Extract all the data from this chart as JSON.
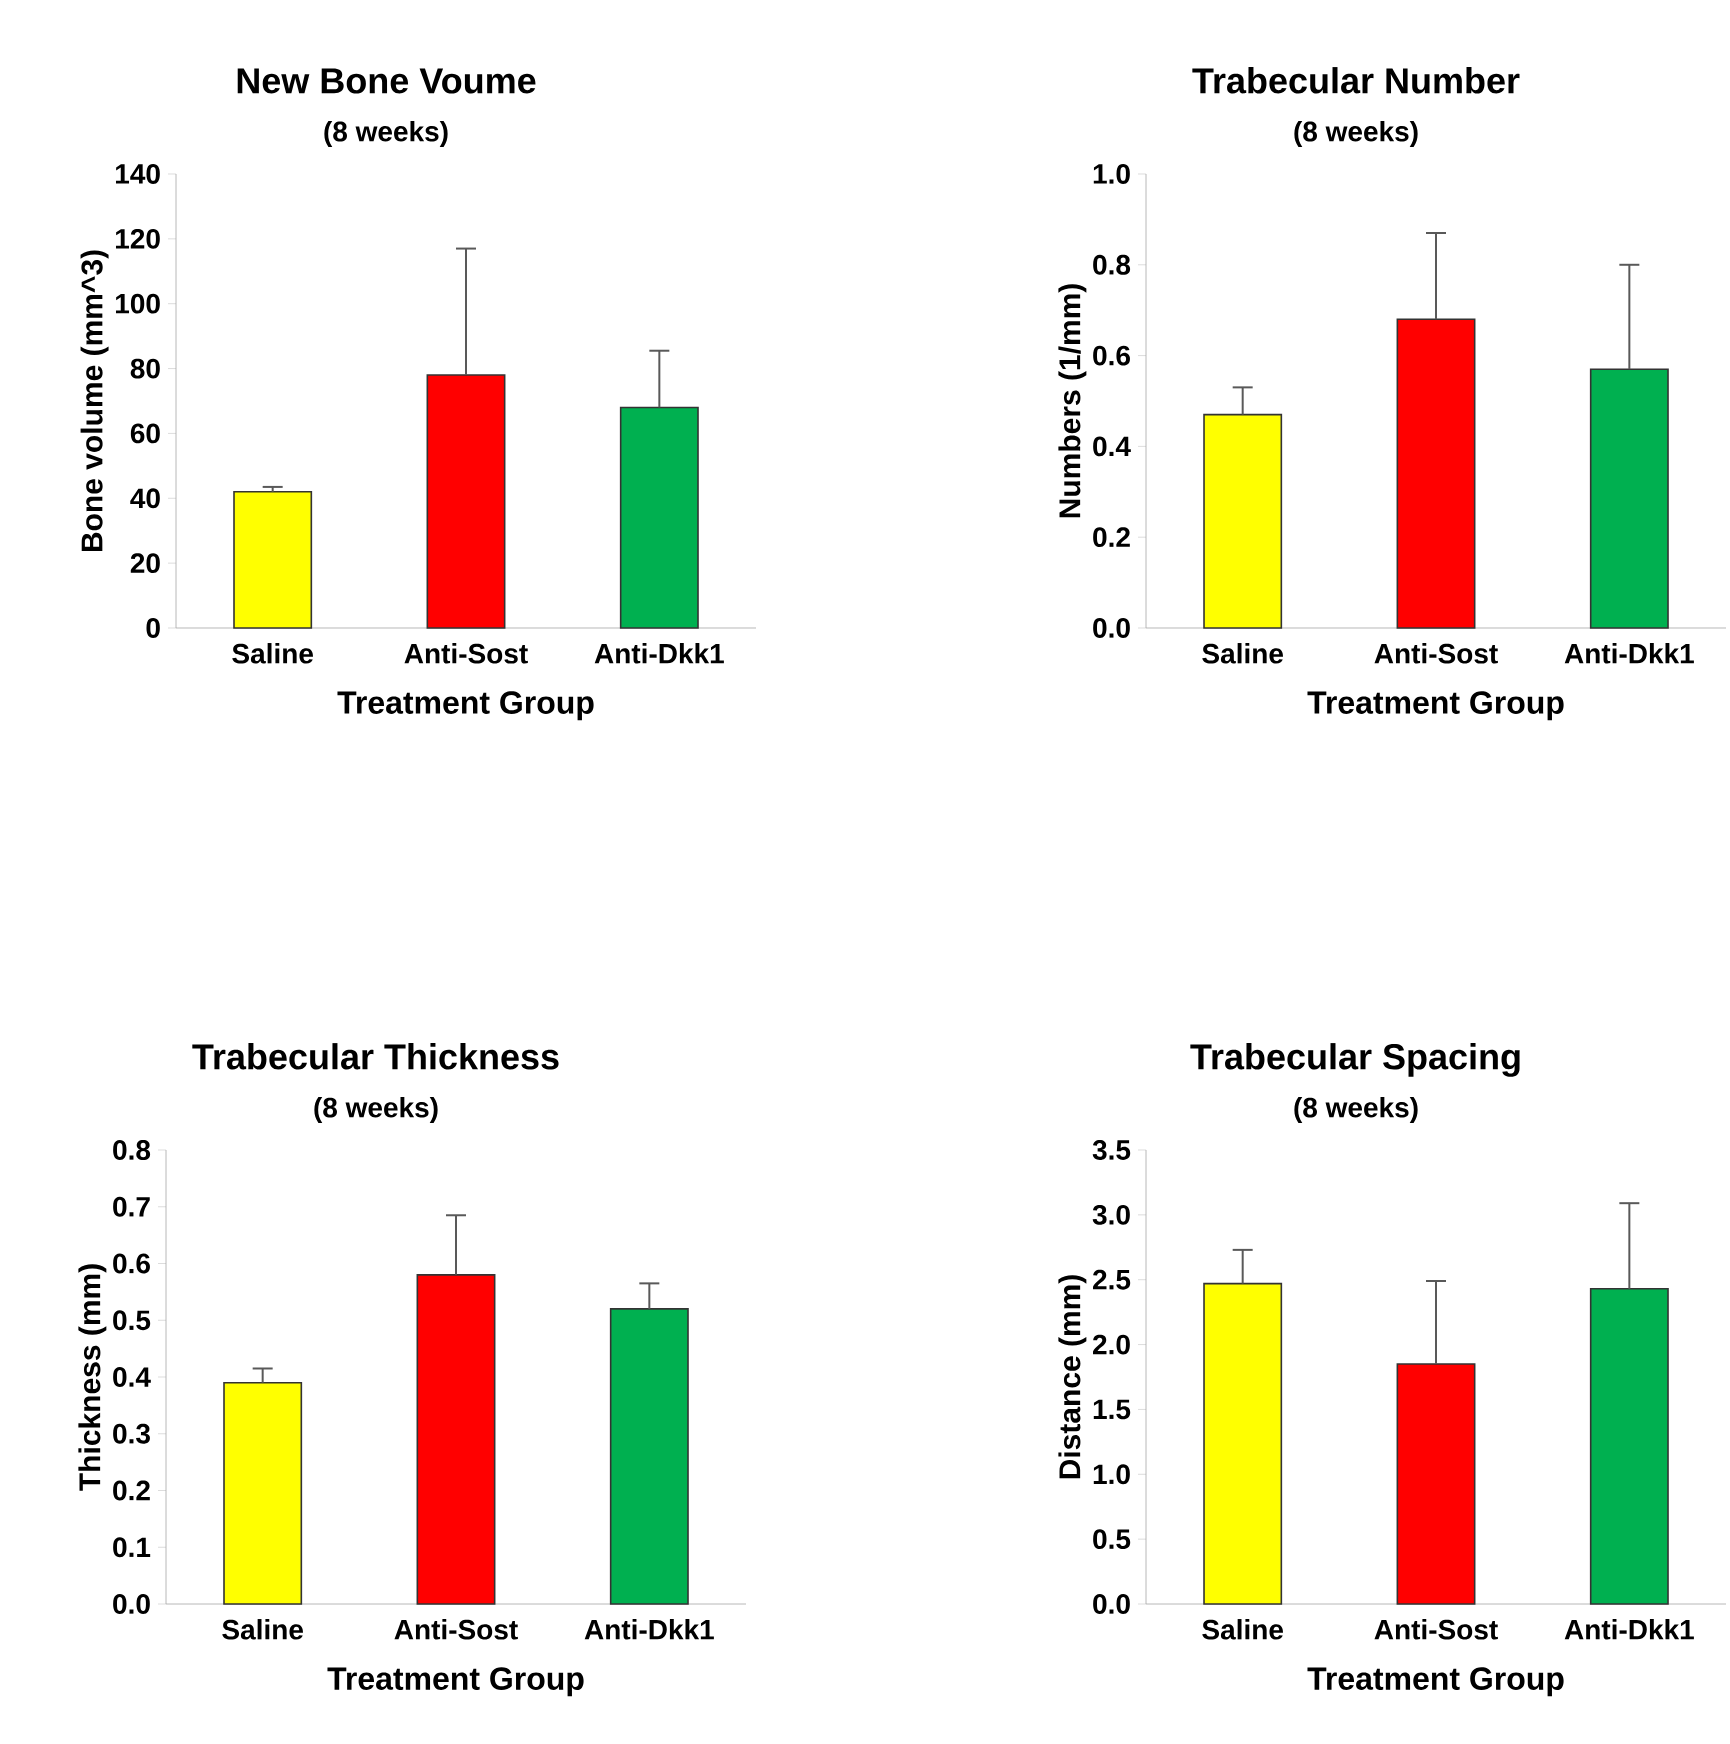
{
  "chart_data": [
    {
      "type": "bar",
      "title": "New Bone Voume",
      "subtitle": "(8 weeks)",
      "xlabel": "Treatment Group",
      "ylabel": "Bone volume (mm^3)",
      "categories": [
        "Saline",
        "Anti-Sost",
        "Anti-Dkk1"
      ],
      "values": [
        42,
        78,
        68
      ],
      "errors": [
        [
          42,
          43.5
        ],
        [
          78,
          117
        ],
        [
          68,
          85.5
        ]
      ],
      "colors": [
        "#ffff00",
        "#ff0000",
        "#00b050"
      ],
      "ylim": [
        0,
        140
      ],
      "yticks": [
        0,
        20,
        40,
        60,
        80,
        100,
        120,
        140
      ]
    },
    {
      "type": "bar",
      "title": "Trabecular Number",
      "subtitle": "(8 weeks)",
      "xlabel": "Treatment Group",
      "ylabel": "Numbers (1/mm)",
      "categories": [
        "Saline",
        "Anti-Sost",
        "Anti-Dkk1"
      ],
      "values": [
        0.47,
        0.68,
        0.57
      ],
      "errors": [
        [
          0.47,
          0.53
        ],
        [
          0.68,
          0.87
        ],
        [
          0.57,
          0.8
        ]
      ],
      "colors": [
        "#ffff00",
        "#ff0000",
        "#00b050"
      ],
      "ylim": [
        0,
        1
      ],
      "yticks": [
        {
          "value": 0,
          "label": "0.0"
        },
        {
          "value": 0.2,
          "label": "0.2"
        },
        {
          "value": 0.4,
          "label": "0.4"
        },
        {
          "value": 0.6,
          "label": "0.6"
        },
        {
          "value": 0.8,
          "label": "0.8"
        },
        {
          "value": 1,
          "label": "1.0"
        }
      ]
    },
    {
      "type": "bar",
      "title": "Trabecular Thickness",
      "subtitle": "(8 weeks)",
      "xlabel": "Treatment Group",
      "ylabel": "Thickness (mm)",
      "categories": [
        "Saline",
        "Anti-Sost",
        "Anti-Dkk1"
      ],
      "values": [
        0.39,
        0.58,
        0.52
      ],
      "errors": [
        [
          0.39,
          0.415
        ],
        [
          0.58,
          0.685
        ],
        [
          0.52,
          0.565
        ]
      ],
      "colors": [
        "#ffff00",
        "#ff0000",
        "#00b050"
      ],
      "ylim": [
        0,
        0.8
      ],
      "yticks": [
        {
          "value": 0,
          "label": "0.0"
        },
        0.1,
        0.2,
        0.3,
        0.4,
        0.5,
        0.6,
        0.7,
        0.8
      ]
    },
    {
      "type": "bar",
      "title": "Trabecular Spacing",
      "subtitle": "(8 weeks)",
      "xlabel": "Treatment Group",
      "ylabel": "Distance (mm)",
      "categories": [
        "Saline",
        "Anti-Sost",
        "Anti-Dkk1"
      ],
      "values": [
        2.47,
        1.85,
        2.43
      ],
      "errors": [
        [
          2.47,
          2.73
        ],
        [
          1.85,
          2.49
        ],
        [
          2.43,
          3.09
        ]
      ],
      "colors": [
        "#ffff00",
        "#ff0000",
        "#00b050"
      ],
      "ylim": [
        0,
        3.5
      ],
      "yticks": [
        {
          "value": 0,
          "label": "0.0"
        },
        {
          "value": 0.5,
          "label": "0.5"
        },
        {
          "value": 1,
          "label": "1.0"
        },
        {
          "value": 1.5,
          "label": "1.5"
        },
        {
          "value": 2,
          "label": "2.0"
        },
        {
          "value": 2.5,
          "label": "2.5"
        },
        {
          "value": 3,
          "label": "3.0"
        },
        {
          "value": 3.5,
          "label": "3.5"
        }
      ]
    }
  ]
}
